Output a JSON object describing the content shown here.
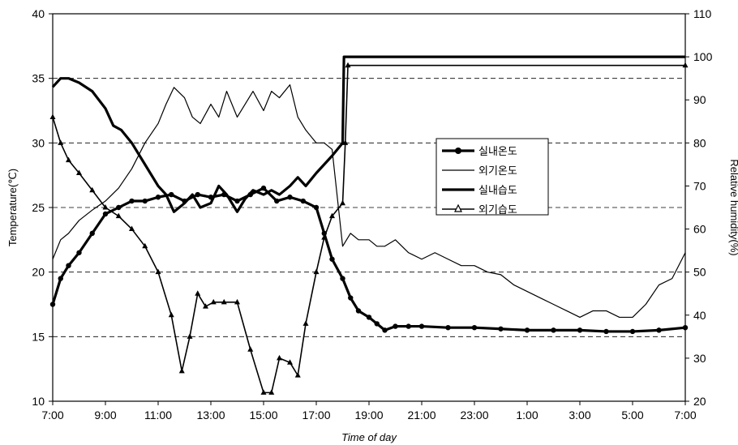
{
  "chart_data": {
    "type": "line",
    "xlabel": "Time of day",
    "ylabel_left": "Temperature(℃)",
    "ylabel_right": "Relative humidity(%)",
    "x_ticks": [
      "7:00",
      "9:00",
      "11:00",
      "13:00",
      "15:00",
      "17:00",
      "19:00",
      "21:00",
      "23:00",
      "1:00",
      "3:00",
      "5:00",
      "7:00"
    ],
    "x_hours": [
      7,
      9,
      11,
      13,
      15,
      17,
      19,
      21,
      23,
      25,
      27,
      29,
      31
    ],
    "ylim_left": [
      10,
      40
    ],
    "yticks_left": [
      10,
      15,
      20,
      25,
      30,
      35,
      40
    ],
    "ylim_right": [
      20,
      110
    ],
    "yticks_right": [
      20,
      30,
      40,
      50,
      60,
      70,
      80,
      90,
      100,
      110
    ],
    "grid": "horizontal-dashed",
    "legend_position": "center-right",
    "series": [
      {
        "name": "실내온도",
        "axis": "left",
        "style": "thick-circle",
        "x": [
          7,
          7.3,
          7.6,
          8,
          8.5,
          9,
          9.5,
          10,
          10.5,
          11,
          11.5,
          12,
          12.5,
          13,
          13.5,
          14,
          14.5,
          15,
          15.5,
          16,
          16.5,
          17,
          17.3,
          17.6,
          18,
          18.3,
          18.6,
          19,
          19.3,
          19.6,
          20,
          20.5,
          21,
          22,
          23,
          24,
          25,
          26,
          27,
          28,
          29,
          30,
          31
        ],
        "y": [
          17.5,
          19.5,
          20.5,
          21.5,
          23,
          24.5,
          25,
          25.5,
          25.5,
          25.8,
          26,
          25.5,
          26,
          25.8,
          26,
          25.5,
          26,
          26.5,
          25.5,
          25.8,
          25.5,
          25,
          23,
          21,
          19.5,
          18,
          17,
          16.5,
          16,
          15.5,
          15.8,
          15.8,
          15.8,
          15.7,
          15.7,
          15.6,
          15.5,
          15.5,
          15.5,
          15.4,
          15.4,
          15.5,
          15.7
        ]
      },
      {
        "name": "외기온도",
        "axis": "left",
        "style": "thin",
        "x": [
          7,
          7.3,
          7.6,
          8,
          8.5,
          9,
          9.5,
          10,
          10.5,
          11,
          11.3,
          11.6,
          12,
          12.3,
          12.6,
          13,
          13.3,
          13.6,
          14,
          14.3,
          14.6,
          15,
          15.3,
          15.6,
          16,
          16.3,
          16.6,
          17,
          17.3,
          17.6,
          18,
          18.3,
          18.6,
          19,
          19.3,
          19.6,
          20,
          20.5,
          21,
          21.5,
          22,
          22.5,
          23,
          23.5,
          24,
          24.5,
          25,
          25.5,
          26,
          26.5,
          27,
          27.5,
          28,
          28.5,
          29,
          29.5,
          30,
          30.5,
          31
        ],
        "y": [
          21,
          22.5,
          23,
          24,
          24.8,
          25.5,
          26.5,
          28,
          30,
          31.5,
          33,
          34.3,
          33.5,
          32,
          31.5,
          33,
          32,
          34,
          32,
          33,
          34,
          32.5,
          34,
          33.5,
          34.5,
          32,
          31,
          30,
          30,
          29.5,
          22,
          23,
          22.5,
          22.5,
          22,
          22,
          22.5,
          21.5,
          21,
          21.5,
          21,
          20.5,
          20.5,
          20,
          19.8,
          19,
          18.5,
          18,
          17.5,
          17,
          16.5,
          17,
          17,
          16.5,
          16.5,
          17.5,
          19,
          19.5,
          21.5
        ]
      },
      {
        "name": "실내습도",
        "axis": "right",
        "style": "thick",
        "x": [
          7,
          7.3,
          7.6,
          8,
          8.5,
          9,
          9.3,
          9.6,
          10,
          10.5,
          11,
          11.3,
          11.6,
          12,
          12.3,
          12.6,
          13,
          13.3,
          13.6,
          14,
          14.3,
          14.6,
          15,
          15.3,
          15.6,
          16,
          16.3,
          16.6,
          17,
          17.3,
          17.6,
          18,
          18.05,
          31
        ],
        "y": [
          93,
          95,
          95,
          94,
          92,
          88,
          84,
          83,
          80,
          75,
          70,
          68,
          64,
          66,
          68,
          65,
          66,
          70,
          68,
          64,
          67,
          69,
          68,
          69,
          68,
          70,
          72,
          70,
          73,
          75,
          77,
          80,
          100,
          100
        ]
      },
      {
        "name": "외기습도",
        "axis": "right",
        "style": "triangle",
        "x": [
          7,
          7.3,
          7.6,
          8,
          8.5,
          9,
          9.5,
          10,
          10.5,
          11,
          11.5,
          11.9,
          12.2,
          12.5,
          12.8,
          13.1,
          13.5,
          14,
          14.5,
          15,
          15.3,
          15.6,
          16,
          16.3,
          16.6,
          17,
          17.3,
          17.6,
          18,
          18.1,
          18.2,
          31
        ],
        "y": [
          86,
          80,
          76,
          73,
          69,
          65,
          63,
          60,
          56,
          50,
          40,
          27,
          35,
          45,
          42,
          43,
          43,
          43,
          32,
          22,
          22,
          30,
          29,
          26,
          38,
          50,
          58,
          63,
          66,
          80,
          98,
          98
        ]
      }
    ],
    "legend": [
      "실내온도",
      "외기온도",
      "실내습도",
      "외기습도"
    ]
  }
}
